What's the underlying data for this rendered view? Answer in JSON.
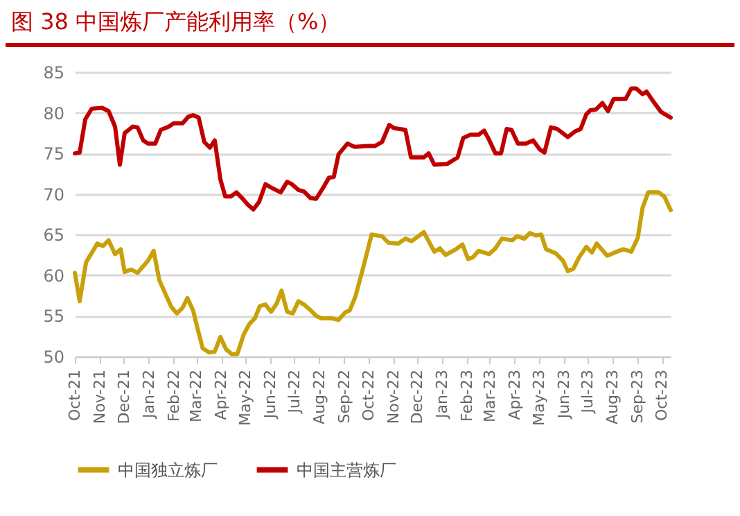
{
  "chart_data": {
    "type": "line",
    "title": "图 38   中国炼厂产能利用率（%）",
    "xlim": [
      "2021-10-01",
      "2023-10-12"
    ],
    "xticks": [
      {
        "value": "2021-10-01",
        "label": "Oct-21"
      },
      {
        "value": "2021-11-01",
        "label": "Nov-21"
      },
      {
        "value": "2021-12-01",
        "label": "Dec-21"
      },
      {
        "value": "2022-01-01",
        "label": "Jan-22"
      },
      {
        "value": "2022-02-01",
        "label": "Feb-22"
      },
      {
        "value": "2022-03-01",
        "label": "Mar-22"
      },
      {
        "value": "2022-04-01",
        "label": "Apr-22"
      },
      {
        "value": "2022-05-01",
        "label": "May-22"
      },
      {
        "value": "2022-06-01",
        "label": "Jun-22"
      },
      {
        "value": "2022-07-01",
        "label": "Jul-22"
      },
      {
        "value": "2022-08-01",
        "label": "Aug-22"
      },
      {
        "value": "2022-09-01",
        "label": "Sep-22"
      },
      {
        "value": "2022-10-01",
        "label": "Oct-22"
      },
      {
        "value": "2022-11-01",
        "label": "Nov-22"
      },
      {
        "value": "2022-12-01",
        "label": "Dec-22"
      },
      {
        "value": "2023-01-01",
        "label": "Jan-23"
      },
      {
        "value": "2023-02-01",
        "label": "Feb-23"
      },
      {
        "value": "2023-03-01",
        "label": "Mar-23"
      },
      {
        "value": "2023-04-01",
        "label": "Apr-23"
      },
      {
        "value": "2023-05-01",
        "label": "May-23"
      },
      {
        "value": "2023-06-01",
        "label": "Jun-23"
      },
      {
        "value": "2023-07-01",
        "label": "Jul-23"
      },
      {
        "value": "2023-08-01",
        "label": "Aug-23"
      },
      {
        "value": "2023-09-01",
        "label": "Sep-23"
      },
      {
        "value": "2023-10-01",
        "label": "Oct-23"
      }
    ],
    "ylim": [
      50,
      85
    ],
    "yticks": [
      50,
      55,
      60,
      65,
      70,
      75,
      80,
      85
    ],
    "grid": "y",
    "legend": "bottom",
    "marker": "none",
    "line_style": "solid",
    "series": [
      {
        "name": "中国独立炼厂",
        "color": "#c8a00a",
        "x": [
          "2021-10-01",
          "2021-10-07",
          "2021-10-15",
          "2021-10-29",
          "2021-11-05",
          "2021-11-12",
          "2021-11-20",
          "2021-11-27",
          "2021-12-02",
          "2021-12-10",
          "2021-12-18",
          "2021-12-31",
          "2022-01-07",
          "2022-01-14",
          "2022-01-23",
          "2022-01-29",
          "2022-02-05",
          "2022-02-12",
          "2022-02-18",
          "2022-02-25",
          "2022-03-02",
          "2022-03-09",
          "2022-03-17",
          "2022-03-24",
          "2022-03-31",
          "2022-04-07",
          "2022-04-14",
          "2022-04-21",
          "2022-04-29",
          "2022-05-06",
          "2022-05-13",
          "2022-05-19",
          "2022-05-26",
          "2022-06-02",
          "2022-06-09",
          "2022-06-15",
          "2022-06-22",
          "2022-06-29",
          "2022-07-06",
          "2022-07-13",
          "2022-07-21",
          "2022-07-28",
          "2022-08-04",
          "2022-08-16",
          "2022-08-25",
          "2022-09-02",
          "2022-09-08",
          "2022-09-15",
          "2022-09-25",
          "2022-10-05",
          "2022-10-18",
          "2022-10-26",
          "2022-11-07",
          "2022-11-16",
          "2022-11-24",
          "2022-12-09",
          "2022-12-22",
          "2022-12-29",
          "2023-01-05",
          "2023-01-18",
          "2023-01-26",
          "2023-02-02",
          "2023-02-08",
          "2023-02-15",
          "2023-02-28",
          "2023-03-08",
          "2023-03-16",
          "2023-03-29",
          "2023-04-04",
          "2023-04-13",
          "2023-04-20",
          "2023-04-27",
          "2023-05-04",
          "2023-05-10",
          "2023-05-22",
          "2023-05-31",
          "2023-06-06",
          "2023-06-13",
          "2023-06-20",
          "2023-06-29",
          "2023-07-06",
          "2023-07-12",
          "2023-07-25",
          "2023-08-06",
          "2023-08-14",
          "2023-08-24",
          "2023-09-01",
          "2023-09-07",
          "2023-09-14",
          "2023-09-27",
          "2023-10-04",
          "2023-10-12"
        ],
        "values": [
          60.3,
          56.8,
          61.6,
          63.9,
          63.6,
          64.3,
          62.6,
          63.2,
          60.4,
          60.7,
          60.3,
          61.8,
          63.0,
          59.4,
          57.4,
          56.1,
          55.3,
          56.0,
          57.2,
          55.7,
          53.7,
          51.0,
          50.5,
          50.6,
          52.4,
          50.9,
          50.3,
          50.3,
          52.7,
          54.0,
          54.7,
          56.2,
          56.4,
          55.5,
          56.5,
          58.1,
          55.5,
          55.3,
          56.8,
          56.4,
          55.7,
          55.0,
          54.7,
          54.7,
          54.5,
          55.4,
          55.7,
          57.4,
          61.1,
          65.0,
          64.8,
          64.0,
          63.9,
          64.5,
          64.2,
          65.3,
          62.9,
          63.3,
          62.5,
          63.2,
          63.8,
          62.0,
          62.2,
          63.0,
          62.6,
          63.3,
          64.5,
          64.3,
          64.8,
          64.5,
          65.2,
          64.9,
          65.0,
          63.2,
          62.7,
          61.8,
          60.5,
          60.8,
          62.2,
          63.5,
          62.8,
          63.9,
          62.4,
          62.9,
          63.2,
          62.9,
          64.6,
          68.3,
          70.2,
          70.2,
          69.7,
          68.0
        ]
      },
      {
        "name": "中国主营炼厂",
        "color": "#c00000",
        "x": [
          "2021-10-01",
          "2021-10-07",
          "2021-10-14",
          "2021-10-22",
          "2021-11-04",
          "2021-11-12",
          "2021-11-20",
          "2021-11-26",
          "2021-12-02",
          "2021-12-12",
          "2021-12-18",
          "2021-12-25",
          "2021-12-31",
          "2022-01-09",
          "2022-01-16",
          "2022-01-26",
          "2022-02-01",
          "2022-02-12",
          "2022-02-19",
          "2022-02-25",
          "2022-03-04",
          "2022-03-11",
          "2022-03-18",
          "2022-03-24",
          "2022-03-31",
          "2022-04-06",
          "2022-04-13",
          "2022-04-20",
          "2022-04-27",
          "2022-05-04",
          "2022-05-11",
          "2022-05-18",
          "2022-05-26",
          "2022-06-02",
          "2022-06-14",
          "2022-06-22",
          "2022-06-28",
          "2022-07-06",
          "2022-07-13",
          "2022-07-21",
          "2022-07-28",
          "2022-08-06",
          "2022-08-13",
          "2022-08-19",
          "2022-08-25",
          "2022-09-05",
          "2022-09-14",
          "2022-09-30",
          "2022-10-09",
          "2022-10-18",
          "2022-10-27",
          "2022-11-02",
          "2022-11-16",
          "2022-11-23",
          "2022-12-09",
          "2022-12-15",
          "2022-12-22",
          "2023-01-07",
          "2023-01-20",
          "2023-01-27",
          "2023-02-05",
          "2023-02-15",
          "2023-02-22",
          "2023-02-28",
          "2023-03-08",
          "2023-03-15",
          "2023-03-22",
          "2023-03-28",
          "2023-04-05",
          "2023-04-15",
          "2023-04-24",
          "2023-05-02",
          "2023-05-08",
          "2023-05-16",
          "2023-05-24",
          "2023-06-06",
          "2023-06-15",
          "2023-06-22",
          "2023-06-29",
          "2023-07-04",
          "2023-07-11",
          "2023-07-19",
          "2023-07-26",
          "2023-08-02",
          "2023-08-17",
          "2023-08-24",
          "2023-08-30",
          "2023-09-07",
          "2023-09-12",
          "2023-09-21",
          "2023-09-30",
          "2023-10-12"
        ],
        "values": [
          75.0,
          75.1,
          79.2,
          80.5,
          80.6,
          80.2,
          78.3,
          73.6,
          77.5,
          78.3,
          78.2,
          76.6,
          76.2,
          76.2,
          77.9,
          78.3,
          78.7,
          78.7,
          79.5,
          79.7,
          79.4,
          76.4,
          75.7,
          76.6,
          71.8,
          69.7,
          69.7,
          70.2,
          69.5,
          68.7,
          68.1,
          69.0,
          71.2,
          70.8,
          70.2,
          71.5,
          71.2,
          70.5,
          70.3,
          69.5,
          69.4,
          70.8,
          72.0,
          72.1,
          74.9,
          76.2,
          75.8,
          75.9,
          75.9,
          76.4,
          78.5,
          78.1,
          77.9,
          74.5,
          74.5,
          75.0,
          73.6,
          73.7,
          74.5,
          76.9,
          77.3,
          77.3,
          77.8,
          76.7,
          75.0,
          75.0,
          78.0,
          77.9,
          76.2,
          76.2,
          76.6,
          75.5,
          75.1,
          78.2,
          78.0,
          77.0,
          77.7,
          78.0,
          79.8,
          80.3,
          80.4,
          81.2,
          80.2,
          81.7,
          81.7,
          83.0,
          83.0,
          82.3,
          82.6,
          81.3,
          80.1,
          79.4
        ]
      }
    ]
  }
}
